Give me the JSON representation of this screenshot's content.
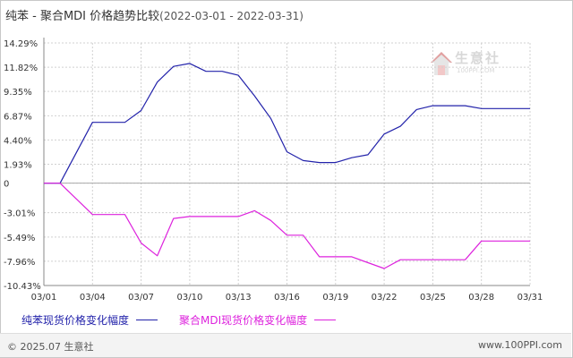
{
  "header": {
    "title": "纯苯 - 聚合MDI 价格趋势比较",
    "date_range": "(2022-03-01 - 2022-03-31)"
  },
  "watermark": {
    "brand": "生意社",
    "url": "100PPI.COM"
  },
  "footer": {
    "copyright": "© 2025.07 生意社",
    "site": "www.100PPI.com"
  },
  "colors": {
    "series1": "#2222aa",
    "series2": "#dd22dd",
    "grid": "#d0d0d0",
    "axis": "#888888",
    "text": "#333333"
  },
  "chart_data": {
    "type": "line",
    "ylim": [
      -10.43,
      14.29
    ],
    "y_ticks": [
      14.29,
      11.82,
      9.35,
      6.87,
      4.4,
      1.93,
      0,
      -3.01,
      -5.49,
      -7.96,
      -10.43
    ],
    "y_tick_labels": [
      "14.29%",
      "11.82%",
      "9.35%",
      "6.87%",
      "4.40%",
      "1.93%",
      "0",
      "-3.01%",
      "-5.49%",
      "-7.96%",
      "-10.43%"
    ],
    "x_tick_labels": [
      "03/01",
      "03/04",
      "03/07",
      "03/10",
      "03/13",
      "03/16",
      "03/19",
      "03/22",
      "03/25",
      "03/28",
      "03/31"
    ],
    "x_tick_days": [
      1,
      4,
      7,
      10,
      13,
      16,
      19,
      22,
      25,
      28,
      31
    ],
    "grid": true,
    "legend_position": "bottom",
    "series": [
      {
        "name": "纯苯现货价格变化幅度",
        "color": "#2222aa",
        "x": [
          1,
          2,
          3,
          4,
          5,
          6,
          7,
          8,
          9,
          10,
          11,
          12,
          13,
          14,
          15,
          16,
          17,
          18,
          19,
          20,
          21,
          22,
          23,
          24,
          25,
          26,
          27,
          28,
          29,
          30,
          31
        ],
        "values": [
          0,
          0,
          3.1,
          6.2,
          6.2,
          6.2,
          7.4,
          10.3,
          11.9,
          12.2,
          11.4,
          11.4,
          11.0,
          8.9,
          6.6,
          3.2,
          2.3,
          2.1,
          2.1,
          2.6,
          2.9,
          5.0,
          5.8,
          7.5,
          7.9,
          7.9,
          7.9,
          7.6,
          7.6,
          7.6,
          7.6
        ]
      },
      {
        "name": "聚合MDI现货价格变化幅度",
        "color": "#dd22dd",
        "x": [
          1,
          2,
          3,
          4,
          5,
          6,
          7,
          8,
          9,
          10,
          11,
          12,
          13,
          14,
          15,
          16,
          17,
          18,
          19,
          20,
          21,
          22,
          23,
          24,
          25,
          26,
          27,
          28,
          29,
          30,
          31
        ],
        "values": [
          0,
          0,
          -1.6,
          -3.2,
          -3.2,
          -3.2,
          -6.1,
          -7.4,
          -3.6,
          -3.4,
          -3.4,
          -3.4,
          -3.4,
          -2.8,
          -3.8,
          -5.3,
          -5.3,
          -7.5,
          -7.5,
          -7.5,
          -8.1,
          -8.7,
          -7.8,
          -7.8,
          -7.8,
          -7.8,
          -7.8,
          -5.9,
          -5.9,
          -5.9,
          -5.9
        ]
      }
    ]
  }
}
